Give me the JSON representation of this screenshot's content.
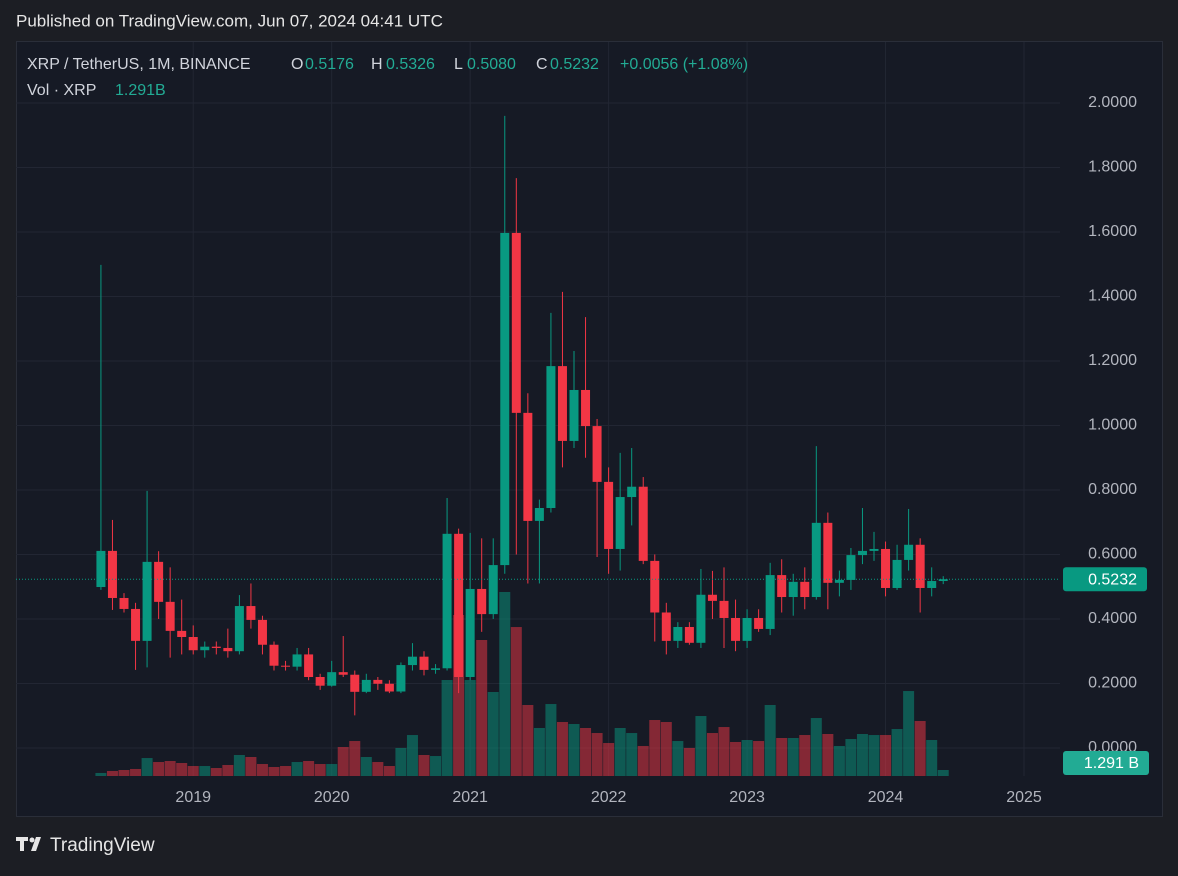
{
  "header": {
    "published": "Published on TradingView.com, Jun 07, 2024 04:41 UTC"
  },
  "footer": {
    "brand": "TradingView"
  },
  "chart_data": {
    "type": "candlestick",
    "legend": {
      "symbol": "XRP / TetherUS, 1M, BINANCE",
      "o": "O",
      "open": "0.5176",
      "h": "H",
      "high": "0.5326",
      "l": "L",
      "low": "0.5080",
      "c": "C",
      "close": "0.5232",
      "change": "+0.0056 (+1.08%)",
      "volume_name": "Vol · XRP",
      "volume": "1.291B",
      "volume_badge": "1.291 B"
    },
    "x": [
      "2018-05",
      "2018-06",
      "2018-07",
      "2018-08",
      "2018-09",
      "2018-10",
      "2018-11",
      "2018-12",
      "2019-01",
      "2019-02",
      "2019-03",
      "2019-04",
      "2019-05",
      "2019-06",
      "2019-07",
      "2019-08",
      "2019-09",
      "2019-10",
      "2019-11",
      "2019-12",
      "2020-01",
      "2020-02",
      "2020-03",
      "2020-04",
      "2020-05",
      "2020-06",
      "2020-07",
      "2020-08",
      "2020-09",
      "2020-10",
      "2020-11",
      "2020-12",
      "2021-01",
      "2021-02",
      "2021-03",
      "2021-04",
      "2021-05",
      "2021-06",
      "2021-07",
      "2021-08",
      "2021-09",
      "2021-10",
      "2021-11",
      "2021-12",
      "2022-01",
      "2022-02",
      "2022-03",
      "2022-04",
      "2022-05",
      "2022-06",
      "2022-07",
      "2022-08",
      "2022-09",
      "2022-10",
      "2022-11",
      "2022-12",
      "2023-01",
      "2023-02",
      "2023-03",
      "2023-04",
      "2023-05",
      "2023-06",
      "2023-07",
      "2023-08",
      "2023-09",
      "2023-10",
      "2023-11",
      "2023-12",
      "2024-01",
      "2024-02",
      "2024-03",
      "2024-04",
      "2024-05",
      "2024-06"
    ],
    "open": [
      0.499,
      0.611,
      0.465,
      0.431,
      0.332,
      0.577,
      0.453,
      0.363,
      0.344,
      0.303,
      0.314,
      0.31,
      0.3,
      0.44,
      0.397,
      0.32,
      0.255,
      0.252,
      0.29,
      0.22,
      0.193,
      0.235,
      0.227,
      0.174,
      0.211,
      0.199,
      0.175,
      0.257,
      0.283,
      0.242,
      0.247,
      0.664,
      0.22,
      0.493,
      0.415,
      0.567,
      1.597,
      1.039,
      0.704,
      0.744,
      1.184,
      0.952,
      1.11,
      0.998,
      0.825,
      0.617,
      0.778,
      0.81,
      0.58,
      0.42,
      0.332,
      0.375,
      0.326,
      0.475,
      0.456,
      0.403,
      0.332,
      0.403,
      0.369,
      0.536,
      0.468,
      0.515,
      0.468,
      0.698,
      0.512,
      0.521,
      0.598,
      0.611,
      0.617,
      0.496,
      0.583,
      0.63,
      0.496,
      0.5176
    ],
    "high": [
      1.498,
      0.707,
      0.48,
      0.45,
      0.797,
      0.61,
      0.56,
      0.46,
      0.38,
      0.33,
      0.33,
      0.37,
      0.474,
      0.51,
      0.41,
      0.33,
      0.27,
      0.31,
      0.31,
      0.23,
      0.27,
      0.347,
      0.24,
      0.23,
      0.22,
      0.21,
      0.265,
      0.325,
      0.3,
      0.26,
      0.775,
      0.68,
      0.667,
      0.65,
      0.65,
      1.96,
      1.767,
      1.1,
      0.77,
      1.349,
      1.414,
      1.231,
      1.336,
      1.02,
      0.87,
      0.915,
      0.93,
      0.84,
      0.6,
      0.45,
      0.39,
      0.39,
      0.555,
      0.549,
      0.56,
      0.46,
      0.43,
      0.43,
      0.574,
      0.585,
      0.54,
      0.56,
      0.936,
      0.73,
      0.55,
      0.62,
      0.744,
      0.67,
      0.64,
      0.63,
      0.741,
      0.65,
      0.56,
      0.5326
    ],
    "low": [
      0.49,
      0.428,
      0.42,
      0.242,
      0.25,
      0.4,
      0.28,
      0.29,
      0.29,
      0.28,
      0.29,
      0.28,
      0.29,
      0.37,
      0.29,
      0.24,
      0.24,
      0.24,
      0.21,
      0.18,
      0.19,
      0.22,
      0.101,
      0.17,
      0.18,
      0.17,
      0.17,
      0.24,
      0.225,
      0.23,
      0.24,
      0.17,
      0.21,
      0.36,
      0.4,
      0.54,
      0.6,
      0.51,
      0.51,
      0.73,
      0.87,
      0.93,
      0.9,
      0.592,
      0.54,
      0.55,
      0.69,
      0.57,
      0.33,
      0.29,
      0.31,
      0.32,
      0.31,
      0.4,
      0.31,
      0.3,
      0.31,
      0.36,
      0.35,
      0.42,
      0.41,
      0.43,
      0.46,
      0.43,
      0.47,
      0.49,
      0.57,
      0.58,
      0.47,
      0.49,
      0.55,
      0.42,
      0.47,
      0.508
    ],
    "close": [
      0.611,
      0.465,
      0.431,
      0.332,
      0.577,
      0.453,
      0.363,
      0.344,
      0.303,
      0.314,
      0.31,
      0.3,
      0.44,
      0.397,
      0.32,
      0.255,
      0.252,
      0.29,
      0.22,
      0.193,
      0.235,
      0.227,
      0.174,
      0.211,
      0.199,
      0.175,
      0.257,
      0.283,
      0.242,
      0.247,
      0.664,
      0.22,
      0.493,
      0.415,
      0.567,
      1.597,
      1.039,
      0.704,
      0.744,
      1.184,
      0.952,
      1.11,
      0.998,
      0.825,
      0.617,
      0.778,
      0.81,
      0.58,
      0.42,
      0.332,
      0.375,
      0.326,
      0.475,
      0.456,
      0.403,
      0.332,
      0.403,
      0.369,
      0.536,
      0.468,
      0.515,
      0.468,
      0.698,
      0.512,
      0.521,
      0.598,
      0.611,
      0.617,
      0.496,
      0.583,
      0.63,
      0.496,
      0.5176,
      0.5232
    ],
    "volume": [
      0.65,
      1.08,
      1.29,
      1.51,
      3.87,
      3.01,
      3.23,
      2.8,
      2.15,
      2.15,
      1.72,
      2.37,
      4.52,
      4.09,
      2.58,
      1.94,
      2.15,
      3.01,
      3.23,
      2.58,
      2.58,
      6.24,
      7.53,
      4.09,
      3.01,
      2.15,
      6.03,
      8.82,
      4.52,
      4.3,
      20.66,
      34.65,
      20.66,
      29.27,
      18.08,
      39.6,
      32.06,
      15.28,
      10.33,
      15.49,
      11.62,
      11.19,
      10.33,
      9.25,
      7.1,
      10.33,
      9.25,
      6.46,
      12.05,
      11.62,
      7.53,
      6.03,
      12.91,
      9.25,
      10.54,
      7.32,
      7.75,
      7.53,
      15.28,
      8.18,
      8.18,
      8.82,
      12.48,
      9.04,
      6.46,
      7.96,
      9.04,
      8.82,
      8.82,
      10.11,
      18.29,
      11.84,
      7.75,
      1.291
    ],
    "up_color": "#089981",
    "down_color": "#f23645",
    "ylim": [
      -0.087,
      2.189
    ],
    "yticks": [
      {
        "value": 0,
        "label": "0.0000"
      },
      {
        "value": 0.2,
        "label": "0.2000"
      },
      {
        "value": 0.4,
        "label": "0.4000"
      },
      {
        "value": 0.6,
        "label": "0.6000"
      },
      {
        "value": 0.8,
        "label": "0.8000"
      },
      {
        "value": 1,
        "label": "1.0000"
      },
      {
        "value": 1.2,
        "label": "1.2000"
      },
      {
        "value": 1.4,
        "label": "1.4000"
      },
      {
        "value": 1.6,
        "label": "1.6000"
      },
      {
        "value": 1.8,
        "label": "1.8000"
      },
      {
        "value": 2,
        "label": "2.0000"
      }
    ],
    "xlim": [
      2017.72,
      2025.26
    ],
    "xticks": [
      2019,
      2020,
      2021,
      2022,
      2023,
      2024,
      2025
    ],
    "grid": true
  }
}
